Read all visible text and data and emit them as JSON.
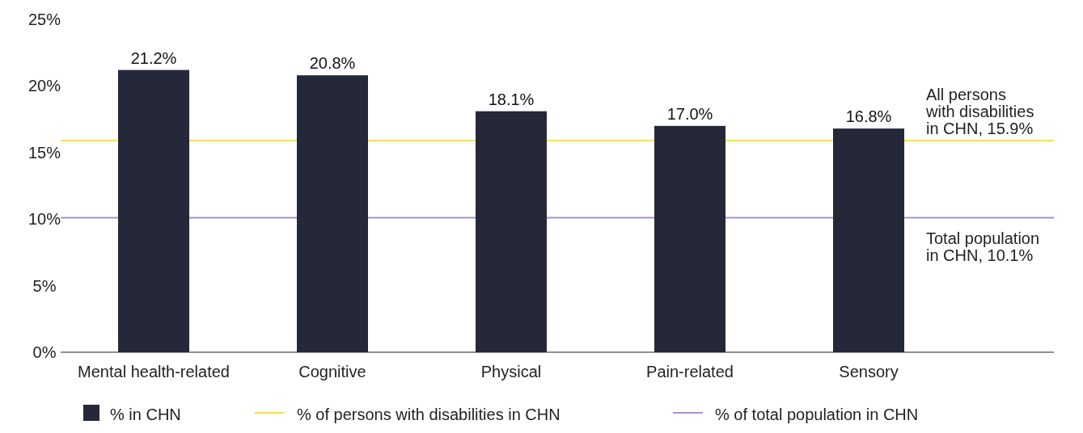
{
  "chart_data": {
    "type": "bar",
    "categories": [
      "Mental health-related",
      "Cognitive",
      "Physical",
      "Pain-related",
      "Sensory"
    ],
    "series": [
      {
        "name": "% in CHN",
        "color": "#252839",
        "values": [
          21.2,
          20.8,
          18.1,
          17.0,
          16.8
        ],
        "value_labels": [
          "21.2%",
          "20.8%",
          "18.1%",
          "17.0%",
          "16.8%"
        ]
      }
    ],
    "ylim": [
      0,
      25
    ],
    "yticks": [
      {
        "value": 0,
        "label": "0%"
      },
      {
        "value": 5,
        "label": "5%"
      },
      {
        "value": 10,
        "label": "10%"
      },
      {
        "value": 15,
        "label": "15%"
      },
      {
        "value": 20,
        "label": "20%"
      },
      {
        "value": 25,
        "label": "25%"
      }
    ],
    "ref_lines": [
      {
        "axis": "y",
        "value": 15.9,
        "label": "All persons\nwith disabilities\nin CHN, 15.9%",
        "color": "#f7e340"
      },
      {
        "axis": "y",
        "value": 10.1,
        "label": "Total population\nin CHN, 10.1%",
        "color": "#a98fd2"
      }
    ],
    "annotations": [
      "% of persons with disabilities in CHN",
      "% of total population in CHN"
    ],
    "grid": false,
    "legend": "bottom"
  }
}
